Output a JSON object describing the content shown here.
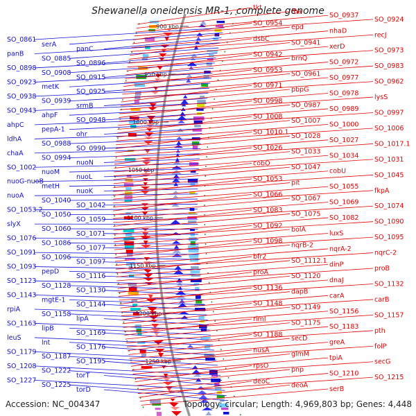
{
  "title": "Shewanella oneidensis MR-1, complete genome",
  "footer": {
    "accession": "Accession: NC_004347",
    "topology": "Topology: circular; Length: 4,969,803 bp; Genes: 4,448"
  },
  "colors": {
    "forward_strand": "#e00000",
    "reverse_strand": "#1010d0",
    "backbone": "#999999",
    "tick": "#2e8b2e"
  },
  "ticks": [
    "900 kbp",
    "950 kbp",
    "1000 kbp",
    "1050 kbp",
    "1100 kbp",
    "1150 kbp",
    "1200 kbp",
    "1250 kbp"
  ],
  "left_labels": [
    "SO_0861",
    "serA",
    "panC",
    "panB",
    "SO_0885",
    "SO_0896",
    "SO_0898",
    "SO_0908",
    "SO_0915",
    "SO_0923",
    "metK",
    "SO_0925",
    "SO_0938",
    "SO_0939",
    "srmB",
    "SO_0943",
    "ahpF",
    "SO_0948",
    "ahpC",
    "pepA-1",
    "ohr",
    "ldhA",
    "SO_0988",
    "SO_0990",
    "chaA",
    "SO_0994",
    "nuoN",
    "SO_1002",
    "nuoM",
    "nuoL",
    "nuoG-nuoB",
    "metH",
    "nuoK",
    "nuoA",
    "SO_1040",
    "SO_1042",
    "SO_1053.2",
    "SO_1050",
    "SO_1059",
    "slyX",
    "SO_1060",
    "SO_1071",
    "SO_1076",
    "SO_1086",
    "SO_1077",
    "SO_1091",
    "SO_1096",
    "SO_1097",
    "SO_1093",
    "pepD",
    "SO_1116",
    "SO_1123",
    "SO_1128",
    "SO_1130",
    "SO_1143",
    "mgtE-1",
    "SO_1144",
    "rpiA",
    "SO_1158",
    "lipA",
    "SO_1163",
    "lipB",
    "SO_1169",
    "leuS",
    "lnt",
    "SO_1176",
    "SO_1179",
    "SO_1187",
    "SO_1195",
    "SO_1208",
    "SO_1222",
    "torT",
    "SO_1227",
    "SO_1225",
    "torD"
  ],
  "right_labels": [
    "tkt",
    "fba",
    "SO_0937",
    "SO_0924",
    "SO_0954",
    "epd",
    "nhaD",
    "recJ",
    "dsbC",
    "SO_0941",
    "xerD",
    "SO_0973",
    "SO_0942",
    "brnQ",
    "SO_0972",
    "SO_0983",
    "SO_0953",
    "SO_0961",
    "SO_0977",
    "SO_0962",
    "SO_0971",
    "pbpG",
    "SO_0978",
    "lysS",
    "SO_0998",
    "SO_0987",
    "SO_0989",
    "SO_0997",
    "SO_1008",
    "SO_1007",
    "SO_1000",
    "SO_1006",
    "SO_1010.1",
    "SO_1028",
    "SO_1027",
    "SO_1017.1",
    "SO_1026",
    "SO_1033",
    "SO_1034",
    "SO_1031",
    "cobO",
    "SO_1047",
    "cobU",
    "SO_1045",
    "SO_1053",
    "pit",
    "SO_1055",
    "fkpA",
    "SO_1066",
    "SO_1067",
    "SO_1069",
    "SO_1074",
    "SO_1083",
    "SO_1075",
    "SO_1082",
    "SO_1090",
    "SO_1092",
    "bolA",
    "luxS",
    "SO_1095",
    "SO_1098",
    "nqrB-2",
    "nqrA-2",
    "nqrC-2",
    "bfr2",
    "SO_1112.1",
    "dinP",
    "proB",
    "proA",
    "SO_1120",
    "dnaJ",
    "SO_1132",
    "SO_1136",
    "dapB",
    "carA",
    "carB",
    "SO_1148",
    "SO_1149",
    "SO_1156",
    "SO_1157",
    "rimI",
    "SO_1175",
    "SO_1183",
    "pth",
    "SO_1188",
    "secD",
    "greA",
    "folP",
    "nusA",
    "glmM",
    "tpiA",
    "secG",
    "rpsO",
    "pnp",
    "SO_1210",
    "SO_1215",
    "deoC",
    "deoA",
    "serB"
  ]
}
